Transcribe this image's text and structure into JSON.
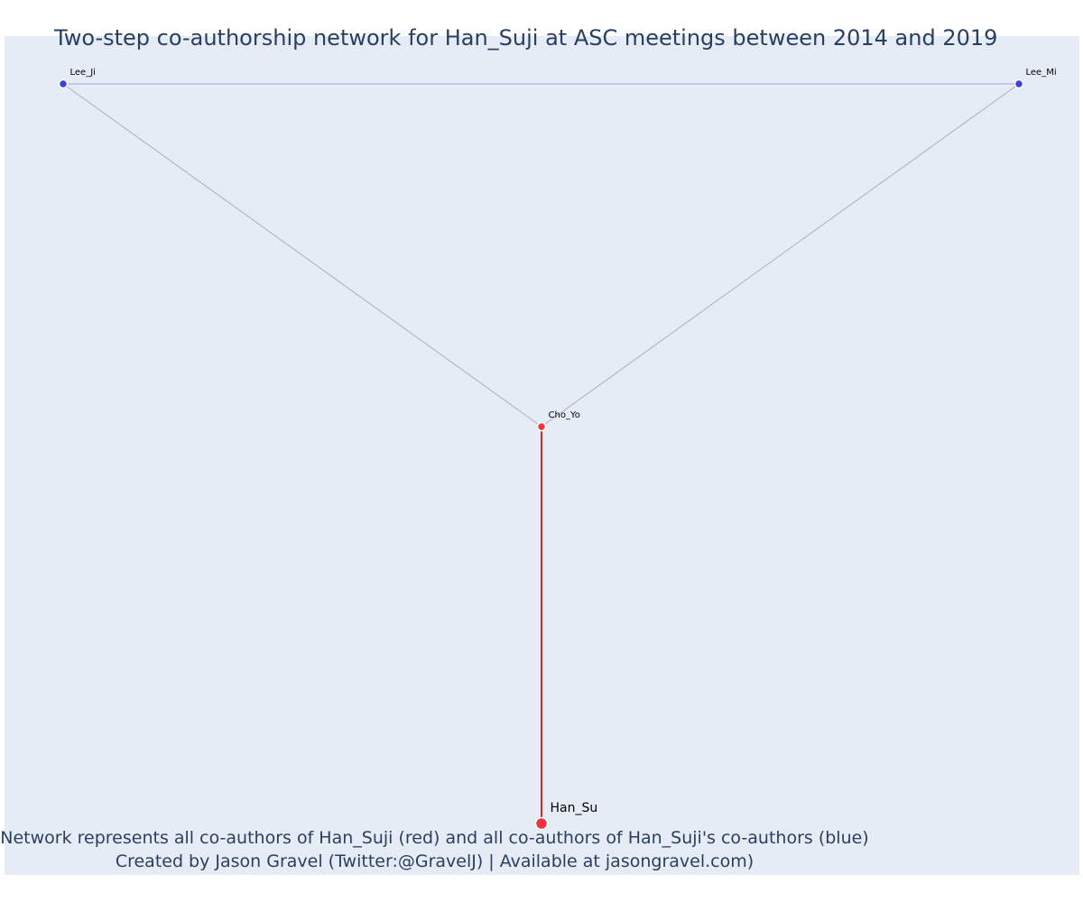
{
  "title": "Two-step co-authorship network for Han_Suji at ASC meetings between 2014 and 2019",
  "caption": {
    "line1": "Network represents all co-authors of Han_Suji (red) and all co-authors of Han_Suji's co-authors (blue)",
    "line2": "Created by Jason Gravel (Twitter:@GravelJ) | Available at jasongravel.com)"
  },
  "colors": {
    "background": "#e5ecf6",
    "ego_edge": "#d62728",
    "other_edge": "#a9aec4",
    "red_node": "#ef3340",
    "blue_node": "#3b3fe0",
    "text": "#2a3f5f"
  },
  "network": {
    "nodes": [
      {
        "id": "Lee_Ji",
        "label": "Lee_Ji",
        "group": "blue"
      },
      {
        "id": "Lee_Mi",
        "label": "Lee_Mi",
        "group": "blue"
      },
      {
        "id": "Cho_Yo",
        "label": "Cho_Yo",
        "group": "red"
      },
      {
        "id": "Han_Su",
        "label": "Han_Su",
        "group": "ego"
      }
    ],
    "edges": [
      {
        "source": "Lee_Ji",
        "target": "Lee_Mi",
        "type": "other"
      },
      {
        "source": "Lee_Ji",
        "target": "Cho_Yo",
        "type": "other"
      },
      {
        "source": "Lee_Mi",
        "target": "Cho_Yo",
        "type": "other"
      },
      {
        "source": "Cho_Yo",
        "target": "Han_Su",
        "type": "ego"
      }
    ]
  }
}
